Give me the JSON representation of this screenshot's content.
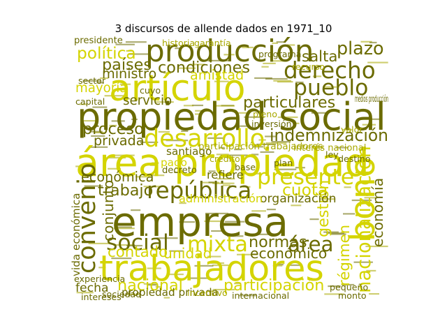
{
  "title": "3 discursos de allende dados en 1971_10",
  "colors": {
    "dark": "#6b6b00",
    "mid": "#a8a800",
    "light": "#d4d400"
  },
  "words": [
    {
      "text": "empresa",
      "weight": 1.0,
      "tone": "dark",
      "rotated": false
    },
    {
      "text": "área propiedad",
      "weight": 0.95,
      "tone": "light",
      "rotated": false
    },
    {
      "text": "propiedad social",
      "weight": 0.92,
      "tone": "dark",
      "rotated": false
    },
    {
      "text": "artículo",
      "weight": 0.88,
      "tone": "light",
      "rotated": false
    },
    {
      "text": "trabajadores",
      "weight": 0.86,
      "tone": "light",
      "rotated": false
    },
    {
      "text": "bono",
      "weight": 0.82,
      "tone": "light",
      "rotated": true
    },
    {
      "text": "producción",
      "weight": 0.72,
      "tone": "dark",
      "rotated": false
    },
    {
      "text": "desarrollo",
      "weight": 0.55,
      "tone": "light",
      "rotated": false
    },
    {
      "text": "convenio",
      "weight": 0.55,
      "tone": "dark",
      "rotated": true
    },
    {
      "text": "república",
      "weight": 0.5,
      "tone": "dark",
      "rotated": false
    },
    {
      "text": "derecho",
      "weight": 0.5,
      "tone": "dark",
      "rotated": false
    },
    {
      "text": "pueblo",
      "weight": 0.48,
      "tone": "dark",
      "rotated": false
    },
    {
      "text": "social",
      "weight": 0.48,
      "tone": "dark",
      "rotated": false
    },
    {
      "text": "presente",
      "weight": 0.48,
      "tone": "light",
      "rotated": false
    },
    {
      "text": "mixta",
      "weight": 0.46,
      "tone": "light",
      "rotated": false
    },
    {
      "text": "área",
      "weight": 0.44,
      "tone": "dark",
      "rotated": false
    },
    {
      "text": "nacionalización",
      "weight": 0.4,
      "tone": "light",
      "rotated": true
    },
    {
      "text": "plazo",
      "weight": 0.36,
      "tone": "dark",
      "rotated": false
    },
    {
      "text": "indemnización",
      "weight": 0.34,
      "tone": "dark",
      "rotated": false
    },
    {
      "text": "política",
      "weight": 0.32,
      "tone": "light",
      "rotated": false
    },
    {
      "text": "países",
      "weight": 0.3,
      "tone": "dark",
      "rotated": false
    },
    {
      "text": "condiciones",
      "weight": 0.3,
      "tone": "dark",
      "rotated": false
    },
    {
      "text": "salta",
      "weight": 0.28,
      "tone": "dark",
      "rotated": false
    },
    {
      "text": "proceso",
      "weight": 0.3,
      "tone": "dark",
      "rotated": false
    },
    {
      "text": "cuota",
      "weight": 0.32,
      "tone": "light",
      "rotated": false
    },
    {
      "text": "gestión",
      "weight": 0.3,
      "tone": "light",
      "rotated": true
    },
    {
      "text": "régimen",
      "weight": 0.28,
      "tone": "light",
      "rotated": true
    },
    {
      "text": "economía",
      "weight": 0.26,
      "tone": "dark",
      "rotated": true
    },
    {
      "text": "normas",
      "weight": 0.3,
      "tone": "dark",
      "rotated": false
    },
    {
      "text": "trabajo",
      "weight": 0.3,
      "tone": "dark",
      "rotated": false
    },
    {
      "text": "particulares",
      "weight": 0.3,
      "tone": "dark",
      "rotated": false
    },
    {
      "text": "participación",
      "weight": 0.3,
      "tone": "light",
      "rotated": false
    },
    {
      "text": "nacional",
      "weight": 0.3,
      "tone": "light",
      "rotated": false
    },
    {
      "text": "contado",
      "weight": 0.28,
      "tone": "light",
      "rotated": false
    },
    {
      "text": "conjunto",
      "weight": 0.26,
      "tone": "dark",
      "rotated": true
    },
    {
      "text": "unidad",
      "weight": 0.26,
      "tone": "light",
      "rotated": false
    },
    {
      "text": "económico",
      "weight": 0.26,
      "tone": "dark",
      "rotated": false
    },
    {
      "text": "económica",
      "weight": 0.24,
      "tone": "dark",
      "rotated": false
    },
    {
      "text": "ministro",
      "weight": 0.24,
      "tone": "dark",
      "rotated": false
    },
    {
      "text": "amistad",
      "weight": 0.24,
      "tone": "light",
      "rotated": false
    },
    {
      "text": "mayoría",
      "weight": 0.22,
      "tone": "light",
      "rotated": false
    },
    {
      "text": "servicio",
      "weight": 0.22,
      "tone": "dark",
      "rotated": false
    },
    {
      "text": "privada",
      "weight": 0.24,
      "tone": "dark",
      "rotated": false
    },
    {
      "text": "organización",
      "weight": 0.2,
      "tone": "dark",
      "rotated": false
    },
    {
      "text": "refiere",
      "weight": 0.18,
      "tone": "dark",
      "rotated": false
    },
    {
      "text": "administración",
      "weight": 0.18,
      "tone": "light",
      "rotated": false
    },
    {
      "text": "fecha",
      "weight": 0.2,
      "tone": "dark",
      "rotated": false
    },
    {
      "text": "pago",
      "weight": 0.16,
      "tone": "light",
      "rotated": false
    },
    {
      "text": "santiago",
      "weight": 0.16,
      "tone": "dark",
      "rotated": false
    },
    {
      "text": "vida económica",
      "weight": 0.16,
      "tone": "dark",
      "rotated": true
    },
    {
      "text": "propiedad privada",
      "weight": 0.16,
      "tone": "dark",
      "rotated": false
    },
    {
      "text": "participación trabajadores",
      "weight": 0.13,
      "tone": "mid",
      "rotated": false
    },
    {
      "text": "medios producción",
      "weight": 0.12,
      "tone": "dark",
      "rotated": false
    },
    {
      "text": "interés nacional",
      "weight": 0.12,
      "tone": "mid",
      "rotated": false
    },
    {
      "text": "presidente",
      "weight": 0.12,
      "tone": "dark",
      "rotated": false
    },
    {
      "text": "decreto",
      "weight": 0.12,
      "tone": "dark",
      "rotated": false
    },
    {
      "text": "experiencia",
      "weight": 0.11,
      "tone": "dark",
      "rotated": false
    },
    {
      "text": "intereses",
      "weight": 0.11,
      "tone": "dark",
      "rotated": false
    },
    {
      "text": "sociedad",
      "weight": 0.11,
      "tone": "dark",
      "rotated": false
    },
    {
      "text": "incentivo",
      "weight": 0.11,
      "tone": "mid",
      "rotated": false
    },
    {
      "text": "internacional",
      "weight": 0.11,
      "tone": "dark",
      "rotated": false
    },
    {
      "text": "pequeño",
      "weight": 0.11,
      "tone": "dark",
      "rotated": false
    },
    {
      "text": "recurso",
      "weight": 0.11,
      "tone": "mid",
      "rotated": false
    },
    {
      "text": "pleno",
      "weight": 0.11,
      "tone": "mid",
      "rotated": false
    },
    {
      "text": "programa",
      "weight": 0.11,
      "tone": "dark",
      "rotated": false
    },
    {
      "text": "capital",
      "weight": 0.11,
      "tone": "dark",
      "rotated": false
    },
    {
      "text": "historia",
      "weight": 0.11,
      "tone": "mid",
      "rotated": false
    },
    {
      "text": "garantía",
      "weight": 0.11,
      "tone": "mid",
      "rotated": false
    },
    {
      "text": "inversión",
      "weight": 0.11,
      "tone": "dark",
      "rotated": false
    },
    {
      "text": "destino",
      "weight": 0.11,
      "tone": "dark",
      "rotated": false
    },
    {
      "text": "sector",
      "weight": 0.11,
      "tone": "dark",
      "rotated": false
    },
    {
      "text": "valor",
      "weight": 0.11,
      "tone": "mid",
      "rotated": false
    },
    {
      "text": "plan",
      "weight": 0.11,
      "tone": "dark",
      "rotated": false
    },
    {
      "text": "crédito",
      "weight": 0.11,
      "tone": "mid",
      "rotated": false
    },
    {
      "text": "base",
      "weight": 0.11,
      "tone": "dark",
      "rotated": false
    },
    {
      "text": "cuyo",
      "weight": 0.11,
      "tone": "dark",
      "rotated": false
    },
    {
      "text": "ley",
      "weight": 0.11,
      "tone": "dark",
      "rotated": false
    },
    {
      "text": "monto",
      "weight": 0.11,
      "tone": "dark",
      "rotated": false
    }
  ]
}
